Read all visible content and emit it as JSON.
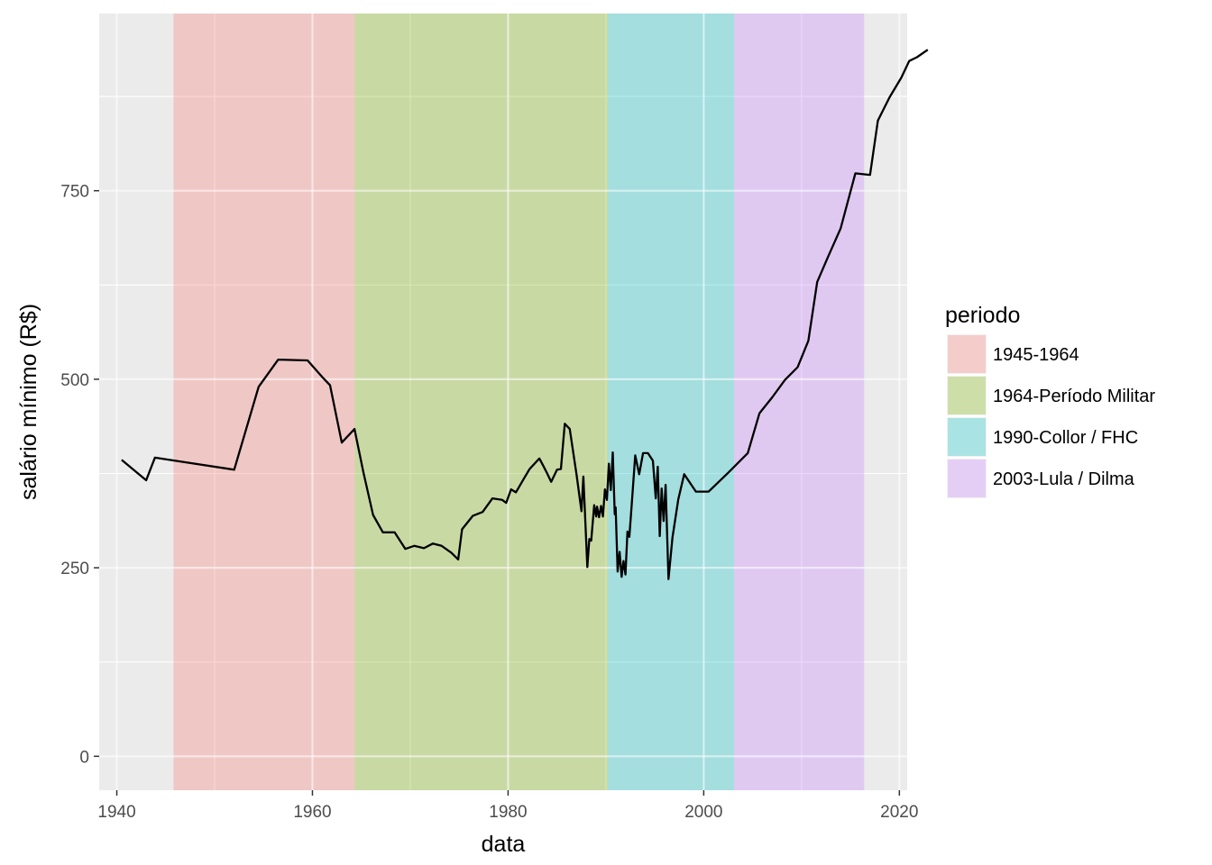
{
  "chart_data": {
    "type": "line",
    "xlabel": "data",
    "ylabel": "salário mínimo (R$)",
    "xlim": [
      1938.2,
      2020.8
    ],
    "ylim": [
      -45,
      985
    ],
    "x_ticks": [
      1940,
      1960,
      1980,
      2000,
      2020
    ],
    "x_tick_labels": [
      "1940",
      "1960",
      "1980",
      "2000",
      "2020"
    ],
    "y_ticks": [
      0,
      250,
      500,
      750
    ],
    "y_tick_labels": [
      "0",
      "250",
      "500",
      "750"
    ],
    "grid": true,
    "legend": {
      "title": "periodo",
      "placement": "right",
      "entries": [
        "1945-1964",
        "1964-Período Militar",
        "1990-Collor / FHC",
        "2003-Lula / Dilma"
      ]
    },
    "periods": [
      {
        "label": "1945-1964",
        "start": 1945.8,
        "end": 1964.3,
        "color": "#F8766D"
      },
      {
        "label": "1964-Período Militar",
        "start": 1964.3,
        "end": 1990.2,
        "color": "#7CAE00"
      },
      {
        "label": "1990-Collor / FHC",
        "start": 1990.2,
        "end": 2003.1,
        "color": "#00BFC4"
      },
      {
        "label": "2003-Lula / Dilma",
        "start": 2003.1,
        "end": 2016.4,
        "color": "#C77CFF"
      }
    ],
    "series": [
      {
        "color": "#000000",
        "points": [
          [
            1940.5,
            393
          ],
          [
            1943.0,
            366
          ],
          [
            1943.9,
            396
          ],
          [
            1952.0,
            380
          ],
          [
            1954.5,
            490
          ],
          [
            1956.5,
            526
          ],
          [
            1959.5,
            525
          ],
          [
            1961.0,
            503
          ],
          [
            1961.8,
            492
          ],
          [
            1963.0,
            416
          ],
          [
            1964.3,
            434
          ],
          [
            1965.2,
            377
          ],
          [
            1966.2,
            320
          ],
          [
            1967.2,
            297
          ],
          [
            1968.4,
            297
          ],
          [
            1969.5,
            275
          ],
          [
            1970.4,
            279
          ],
          [
            1971.4,
            276
          ],
          [
            1972.3,
            282
          ],
          [
            1973.2,
            279
          ],
          [
            1974.2,
            270
          ],
          [
            1974.9,
            261
          ],
          [
            1975.3,
            301
          ],
          [
            1976.4,
            319
          ],
          [
            1977.4,
            324
          ],
          [
            1978.4,
            342
          ],
          [
            1979.4,
            340
          ],
          [
            1979.8,
            336
          ],
          [
            1980.3,
            354
          ],
          [
            1980.8,
            350
          ],
          [
            1981.6,
            368
          ],
          [
            1982.2,
            381
          ],
          [
            1983.2,
            395
          ],
          [
            1983.6,
            385
          ],
          [
            1984.0,
            375
          ],
          [
            1984.4,
            364
          ],
          [
            1985.0,
            380
          ],
          [
            1985.4,
            381
          ],
          [
            1985.8,
            441
          ],
          [
            1986.3,
            434
          ],
          [
            1987.0,
            373
          ],
          [
            1987.5,
            325
          ],
          [
            1987.7,
            371
          ],
          [
            1988.1,
            251
          ],
          [
            1988.3,
            288
          ],
          [
            1988.5,
            286
          ],
          [
            1988.8,
            333
          ],
          [
            1989.0,
            318
          ],
          [
            1989.1,
            331
          ],
          [
            1989.3,
            317
          ],
          [
            1989.5,
            332
          ],
          [
            1989.7,
            318
          ],
          [
            1989.9,
            354
          ],
          [
            1990.1,
            340
          ],
          [
            1990.3,
            388
          ],
          [
            1990.5,
            353
          ],
          [
            1990.7,
            403
          ],
          [
            1990.9,
            321
          ],
          [
            1991.0,
            330
          ],
          [
            1991.2,
            245
          ],
          [
            1991.4,
            271
          ],
          [
            1991.6,
            238
          ],
          [
            1991.8,
            259
          ],
          [
            1992.0,
            241
          ],
          [
            1992.2,
            298
          ],
          [
            1992.4,
            291
          ],
          [
            1992.7,
            345
          ],
          [
            1993.0,
            399
          ],
          [
            1993.4,
            374
          ],
          [
            1993.8,
            402
          ],
          [
            1994.3,
            402
          ],
          [
            1994.8,
            392
          ],
          [
            1995.1,
            342
          ],
          [
            1995.3,
            384
          ],
          [
            1995.5,
            292
          ],
          [
            1995.7,
            355
          ],
          [
            1995.9,
            312
          ],
          [
            1996.1,
            360
          ],
          [
            1996.4,
            235
          ],
          [
            1996.8,
            290
          ],
          [
            1997.4,
            341
          ],
          [
            1998.0,
            374
          ],
          [
            1999.2,
            351
          ],
          [
            2000.5,
            351
          ],
          [
            2002.5,
            376
          ],
          [
            2004.5,
            402
          ],
          [
            2005.7,
            455
          ],
          [
            2007.0,
            476
          ],
          [
            2008.3,
            499
          ],
          [
            2009.6,
            516
          ],
          [
            2010.7,
            551
          ],
          [
            2011.6,
            629
          ],
          [
            2012.7,
            662
          ],
          [
            2014.0,
            700
          ],
          [
            2015.5,
            773
          ],
          [
            2017.0,
            771
          ],
          [
            2017.8,
            843
          ],
          [
            2019.0,
            874
          ],
          [
            2020.2,
            900
          ],
          [
            2021.0,
            922
          ],
          [
            2021.8,
            927
          ],
          [
            2022.9,
            937
          ]
        ]
      }
    ]
  }
}
